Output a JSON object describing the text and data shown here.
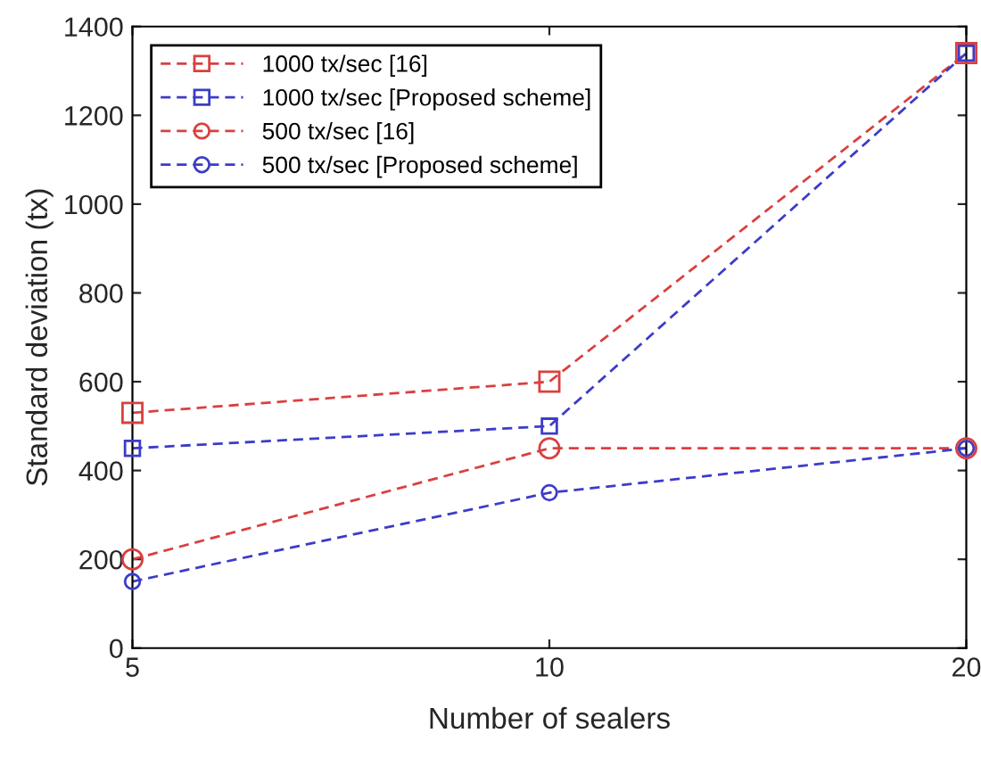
{
  "chart_data": {
    "type": "line",
    "xlabel": "Number of sealers",
    "ylabel": "Standard deviation (tx)",
    "x": [
      5,
      10,
      20
    ],
    "log": "x",
    "xlim": [
      5,
      20
    ],
    "xticks": [
      5,
      10,
      20
    ],
    "series": [
      {
        "name": "1000 tx/sec [16]",
        "color": "#d9403f",
        "marker": "square",
        "values": [
          530,
          600,
          1340
        ]
      },
      {
        "name": "1000 tx/sec [Proposed scheme]",
        "color": "#3c3cc8",
        "marker": "square",
        "values": [
          450,
          500,
          1340
        ]
      },
      {
        "name": "500 tx/sec [16]",
        "color": "#d9403f",
        "marker": "circle",
        "values": [
          200,
          450,
          450
        ]
      },
      {
        "name": "500 tx/sec [Proposed scheme]",
        "color": "#3c3cc8",
        "marker": "circle",
        "values": [
          150,
          350,
          450
        ]
      }
    ],
    "ylim": [
      0,
      1400
    ],
    "yticks": [
      0,
      200,
      400,
      600,
      800,
      1000,
      1200,
      1400
    ],
    "line_style": "dashed",
    "grid": false,
    "legend": "top left"
  }
}
